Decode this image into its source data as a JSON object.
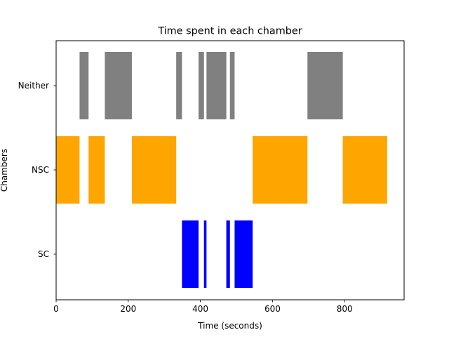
{
  "chart_data": {
    "type": "bar",
    "orientation": "horizontal-broken-bar",
    "title": "Time spent in each chamber",
    "xlabel": "Time (seconds)",
    "ylabel": "Chambers",
    "xlim": [
      0,
      965
    ],
    "x_ticks": [
      0,
      200,
      400,
      600,
      800
    ],
    "categories": [
      "SC",
      "NSC",
      "Neither"
    ],
    "grid": false,
    "series": [
      {
        "category": "Neither",
        "color": "#808080",
        "segments": [
          [
            65,
            90
          ],
          [
            135,
            210
          ],
          [
            333,
            349
          ],
          [
            395,
            410
          ],
          [
            417,
            472
          ],
          [
            482,
            495
          ],
          [
            697,
            795
          ]
        ]
      },
      {
        "category": "NSC",
        "color": "#FFA500",
        "segments": [
          [
            0,
            65
          ],
          [
            90,
            135
          ],
          [
            210,
            333
          ],
          [
            545,
            697
          ],
          [
            795,
            918
          ]
        ]
      },
      {
        "category": "SC",
        "color": "#0000FF",
        "segments": [
          [
            349,
            395
          ],
          [
            410,
            417
          ],
          [
            472,
            482
          ],
          [
            495,
            545
          ]
        ]
      }
    ]
  }
}
